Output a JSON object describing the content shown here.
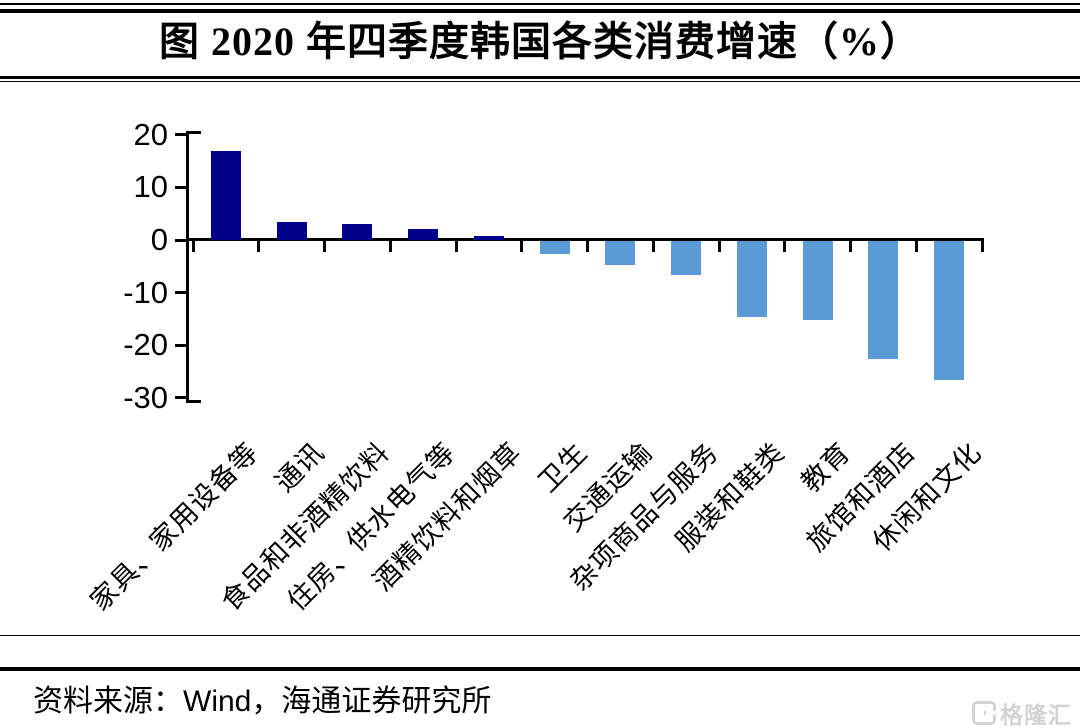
{
  "title": "图  2020 年四季度韩国各类消费增速（%）",
  "source": {
    "label": "资料来源：",
    "text": "Wind，海通证券研究所"
  },
  "watermark": {
    "icon": "gelonghui-g-icon",
    "text": "格隆汇"
  },
  "colors": {
    "positive_bar": "#00008b",
    "negative_bar": "#5b9bd5",
    "axis": "#000000",
    "watermark_gray": "#d2d2d2"
  },
  "chart_data": {
    "type": "bar",
    "title": "图 2020 年四季度韩国各类消费增速（%）",
    "categories": [
      "家具、家用设备等",
      "通讯",
      "食品和非酒精饮料",
      "住房、供水电气等",
      "酒精饮料和烟草",
      "卫生",
      "交通运输",
      "杂项商品与服务",
      "服装和鞋类",
      "教育",
      "旅馆和酒店",
      "休闲和文化"
    ],
    "values": [
      17,
      3.5,
      3,
      2,
      0.8,
      -2.5,
      -4.5,
      -6.5,
      -14.5,
      -15,
      -22.5,
      -26.5
    ],
    "xlabel": "",
    "ylabel": "",
    "ylim": [
      -30,
      20
    ],
    "yticks": [
      20,
      10,
      0,
      -10,
      -20,
      -30
    ],
    "grid": false,
    "legend": "none",
    "positive_color": "#00008b",
    "negative_color": "#5b9bd5"
  }
}
